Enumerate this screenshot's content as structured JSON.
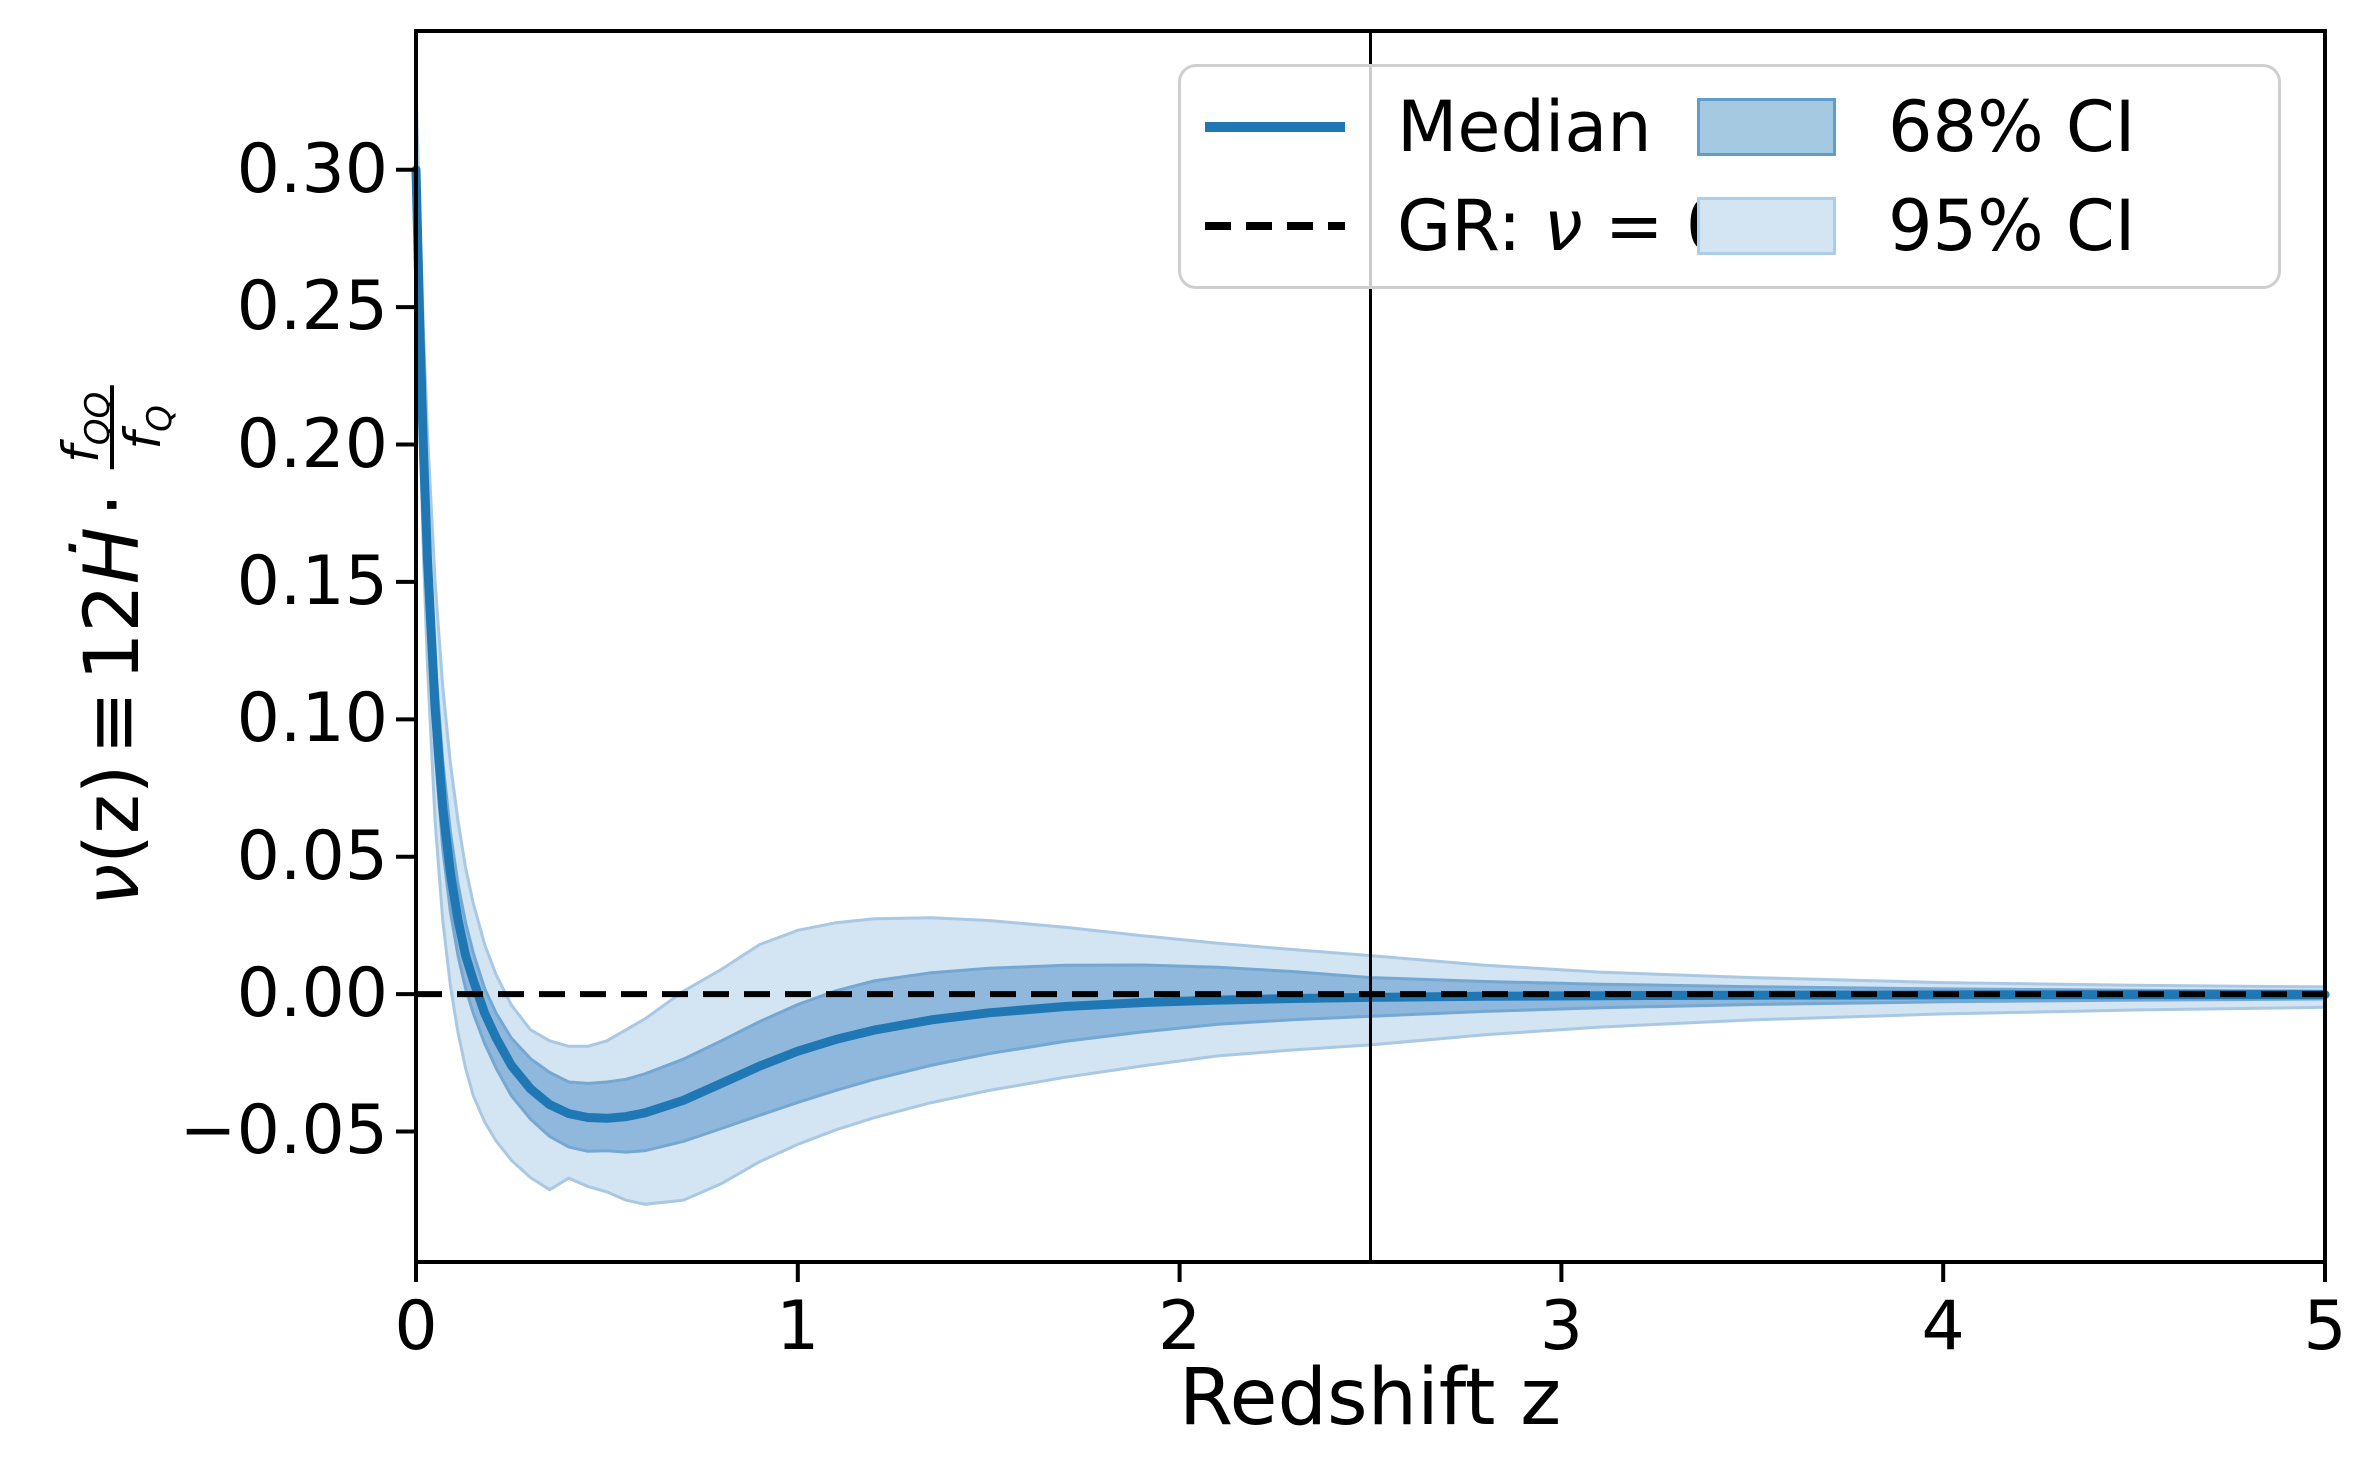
{
  "axes": {
    "xlabel": "Redshift z",
    "x_tick_labels": [
      "0",
      "1",
      "2",
      "3",
      "4",
      "5"
    ],
    "x_tick_values": [
      0,
      1,
      2,
      3,
      4,
      5
    ],
    "y_tick_labels": [
      "0.30",
      "0.25",
      "0.20",
      "0.15",
      "0.10",
      "0.05",
      "0.00",
      "−0.05"
    ],
    "y_tick_values": [
      0.3,
      0.25,
      0.2,
      0.15,
      0.1,
      0.05,
      0.0,
      -0.05
    ],
    "ylabel_nu": "ν",
    "ylabel_arg": "(z)",
    "ylabel_equiv": "≡",
    "ylabel_coef": "12",
    "ylabel_H": "Ḣ",
    "ylabel_dot": "·",
    "ylabel_frac_num": "f",
    "ylabel_frac_num_sub": "QQ",
    "ylabel_frac_den": "f",
    "ylabel_frac_den_sub": "Q"
  },
  "legend": {
    "median_label": "Median",
    "gr_prefix": "GR: ",
    "gr_nu": "ν",
    "gr_rest": " = 0",
    "ci68_label": "68% CI",
    "ci95_label": "95% CI"
  },
  "colors": {
    "median": "#1f77b4",
    "band68_fill": "#8fb8dc",
    "band68_edge": "#74a7d2",
    "band95_fill": "#d3e4f2",
    "band95_edge": "#a9c8e3",
    "gr_line": "#000000",
    "vline": "#000000",
    "legend_patch68_fill": "#a6c9e2",
    "legend_patch68_edge": "#5f9dcb",
    "legend_patch95_fill": "#d3e4f2",
    "legend_patch95_edge": "#abcde7"
  },
  "chart_data": {
    "type": "line",
    "title": "",
    "xlabel": "Redshift z",
    "ylabel": "ν(z) ≡ 12Ḣ · f_QQ/f_Q",
    "xlim": [
      0,
      5
    ],
    "ylim": [
      -0.0975,
      0.3505
    ],
    "grid": false,
    "legend_position": "upper right",
    "x": [
      0,
      0.01,
      0.02,
      0.03,
      0.05,
      0.07,
      0.09,
      0.11,
      0.13,
      0.15,
      0.18,
      0.21,
      0.25,
      0.3,
      0.35,
      0.4,
      0.45,
      0.5,
      0.55,
      0.6,
      0.7,
      0.8,
      0.9,
      1.0,
      1.1,
      1.2,
      1.35,
      1.5,
      1.7,
      1.9,
      2.1,
      2.3,
      2.5,
      2.8,
      3.1,
      3.5,
      4.0,
      4.5,
      5.0
    ],
    "series": [
      {
        "name": "Median",
        "values": [
          0.3,
          0.243,
          0.196,
          0.158,
          0.104,
          0.068,
          0.044,
          0.027,
          0.014,
          0.005,
          -0.007,
          -0.016,
          -0.026,
          -0.0345,
          -0.0402,
          -0.0435,
          -0.0449,
          -0.0452,
          -0.0446,
          -0.0432,
          -0.0387,
          -0.0325,
          -0.0262,
          -0.0208,
          -0.0165,
          -0.0131,
          -0.0094,
          -0.0068,
          -0.0045,
          -0.0031,
          -0.0022,
          -0.0016,
          -0.0012,
          -0.0008,
          -0.0006,
          -0.0004,
          -0.0003,
          -0.0002,
          -0.0002
        ]
      },
      {
        "name": "68% CI upper",
        "values": [
          0.311,
          0.258,
          0.213,
          0.176,
          0.122,
          0.085,
          0.059,
          0.04,
          0.026,
          0.015,
          0.002,
          -0.007,
          -0.016,
          -0.0235,
          -0.0285,
          -0.032,
          -0.0325,
          -0.032,
          -0.031,
          -0.029,
          -0.0237,
          -0.017,
          -0.01,
          -0.0038,
          0.0012,
          0.0048,
          0.0078,
          0.0094,
          0.0105,
          0.0106,
          0.0098,
          0.0082,
          0.006,
          0.0046,
          0.0036,
          0.0027,
          0.0019,
          0.0014,
          0.0011
        ]
      },
      {
        "name": "68% CI lower",
        "values": [
          0.289,
          0.228,
          0.18,
          0.142,
          0.088,
          0.053,
          0.03,
          0.014,
          0.002,
          -0.007,
          -0.018,
          -0.027,
          -0.037,
          -0.0455,
          -0.0518,
          -0.0556,
          -0.0572,
          -0.057,
          -0.0575,
          -0.057,
          -0.0536,
          -0.0489,
          -0.0441,
          -0.0394,
          -0.035,
          -0.031,
          -0.0259,
          -0.0217,
          -0.0172,
          -0.0138,
          -0.011,
          -0.0093,
          -0.0081,
          -0.0063,
          -0.005,
          -0.0038,
          -0.0028,
          -0.0022,
          -0.0018
        ]
      },
      {
        "name": "95% CI upper",
        "values": [
          0.33,
          0.283,
          0.24,
          0.204,
          0.15,
          0.112,
          0.084,
          0.063,
          0.046,
          0.033,
          0.018,
          0.007,
          -0.004,
          -0.013,
          -0.017,
          -0.019,
          -0.019,
          -0.017,
          -0.013,
          -0.009,
          0.001,
          0.009,
          0.018,
          0.0232,
          0.026,
          0.0274,
          0.0278,
          0.0268,
          0.0243,
          0.0213,
          0.0185,
          0.0162,
          0.014,
          0.0105,
          0.008,
          0.006,
          0.0042,
          0.0032,
          0.0026
        ]
      },
      {
        "name": "95% CI lower",
        "values": [
          0.27,
          0.208,
          0.158,
          0.119,
          0.063,
          0.027,
          0.003,
          -0.014,
          -0.027,
          -0.037,
          -0.0465,
          -0.0535,
          -0.0605,
          -0.0668,
          -0.0712,
          -0.067,
          -0.07,
          -0.072,
          -0.075,
          -0.0765,
          -0.075,
          -0.069,
          -0.061,
          -0.0547,
          -0.0494,
          -0.045,
          -0.0395,
          -0.0351,
          -0.0303,
          -0.0262,
          -0.0225,
          -0.0203,
          -0.0185,
          -0.0148,
          -0.012,
          -0.0094,
          -0.0072,
          -0.0058,
          -0.0048
        ]
      }
    ],
    "annotations": [
      {
        "type": "hline",
        "y": 0,
        "style": "dashed",
        "label": "GR: ν = 0"
      },
      {
        "type": "vline",
        "x": 2.5,
        "style": "solid"
      }
    ]
  }
}
